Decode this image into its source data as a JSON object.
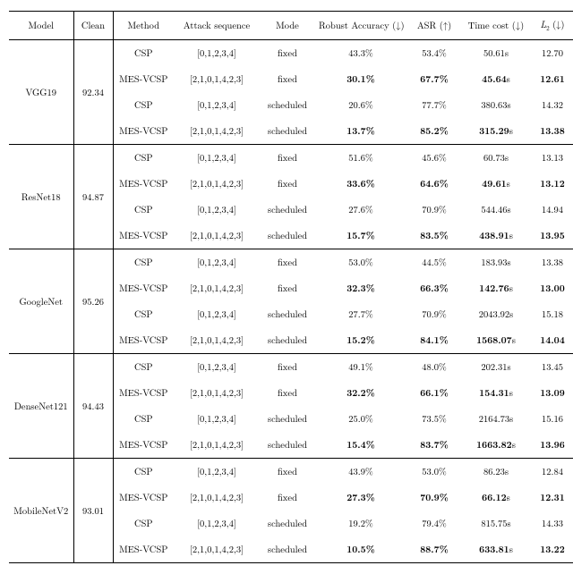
{
  "columns": {
    "model": "Model",
    "clean": "Clean",
    "method": "Method",
    "seq": "Attack sequence",
    "mode": "Mode",
    "robust": "Robust Accuracy (↓)",
    "asr": "ASR (↑)",
    "time": "Time cost (↓)",
    "l2_prefix": "L",
    "l2_sub": "2",
    "l2_suffix": " (↓)"
  },
  "groups": [
    {
      "model": "VGG19",
      "clean": "92.34",
      "rows": [
        {
          "method": "CSP",
          "seq": "[0,1,2,3,4]",
          "mode": "fixed",
          "robust": "43.3%",
          "asr": "53.4%",
          "time": "50.61s",
          "l2": "12.70",
          "bold": false
        },
        {
          "method": "MES-VCSP",
          "seq": "[2,1,0,1,4,2,3]",
          "mode": "fixed",
          "robust": "30.1%",
          "asr": "67.7%",
          "time": "45.64s",
          "l2": "12.61",
          "bold": true
        },
        {
          "method": "CSP",
          "seq": "[0,1,2,3,4]",
          "mode": "scheduled",
          "robust": "20.6%",
          "asr": "77.7%",
          "time": "380.63s",
          "l2": "14.32",
          "bold": false
        },
        {
          "method": "MES-VCSP",
          "seq": "[2,1,0,1,4,2,3]",
          "mode": "scheduled",
          "robust": "13.7%",
          "asr": "85.2%",
          "time": "315.29s",
          "l2": "13.38",
          "bold": true
        }
      ]
    },
    {
      "model": "ResNet18",
      "clean": "94.87",
      "rows": [
        {
          "method": "CSP",
          "seq": "[0,1,2,3,4]",
          "mode": "fixed",
          "robust": "51.6%",
          "asr": "45.6%",
          "time": "60.73s",
          "l2": "13.13",
          "bold": false
        },
        {
          "method": "MES-VCSP",
          "seq": "[2,1,0,1,4,2,3]",
          "mode": "fixed",
          "robust": "33.6%",
          "asr": "64.6%",
          "time": "49.61s",
          "l2": "13.12",
          "bold": true
        },
        {
          "method": "CSP",
          "seq": "[0,1,2,3,4]",
          "mode": "scheduled",
          "robust": "27.6%",
          "asr": "70.9%",
          "time": "544.46s",
          "l2": "14.94",
          "bold": false
        },
        {
          "method": "MES-VCSP",
          "seq": "[2,1,0,1,4,2,3]",
          "mode": "scheduled",
          "robust": "15.7%",
          "asr": "83.5%",
          "time": "438.91s",
          "l2": "13.95",
          "bold": true
        }
      ]
    },
    {
      "model": "GoogleNet",
      "clean": "95.26",
      "rows": [
        {
          "method": "CSP",
          "seq": "[0,1,2,3,4]",
          "mode": "fixed",
          "robust": "53.0%",
          "asr": "44.5%",
          "time": "183.93s",
          "l2": "13.38",
          "bold": false
        },
        {
          "method": "MES-VCSP",
          "seq": "[2,1,0,1,4,2,3]",
          "mode": "fixed",
          "robust": "32.3%",
          "asr": "66.3%",
          "time": "142.76s",
          "l2": "13.00",
          "bold": true
        },
        {
          "method": "CSP",
          "seq": "[0,1,2,3,4]",
          "mode": "scheduled",
          "robust": "27.7%",
          "asr": "70.9%",
          "time": "2043.92s",
          "l2": "15.18",
          "bold": false
        },
        {
          "method": "MES-VCSP",
          "seq": "[2,1,0,1,4,2,3]",
          "mode": "scheduled",
          "robust": "15.2%",
          "asr": "84.1%",
          "time": "1568.07s",
          "l2": "14.04",
          "bold": true
        }
      ]
    },
    {
      "model": "DenseNet121",
      "clean": "94.43",
      "rows": [
        {
          "method": "CSP",
          "seq": "[0,1,2,3,4]",
          "mode": "fixed",
          "robust": "49.1%",
          "asr": "48.0%",
          "time": "202.31s",
          "l2": "13.45",
          "bold": false
        },
        {
          "method": "MES-VCSP",
          "seq": "[2,1,0,1,4,2,3]",
          "mode": "fixed",
          "robust": "32.2%",
          "asr": "66.1%",
          "time": "154.31s",
          "l2": "13.09",
          "bold": true
        },
        {
          "method": "CSP",
          "seq": "[0,1,2,3,4]",
          "mode": "scheduled",
          "robust": "25.0%",
          "asr": "73.5%",
          "time": "2164.73s",
          "l2": "15.16",
          "bold": false
        },
        {
          "method": "MES-VCSP",
          "seq": "[2,1,0,1,4,2,3]",
          "mode": "scheduled",
          "robust": "15.4%",
          "asr": "83.7%",
          "time": "1663.82s",
          "l2": "13.96",
          "bold": true
        }
      ]
    },
    {
      "model": "MobileNetV2",
      "clean": "93.01",
      "rows": [
        {
          "method": "CSP",
          "seq": "[0,1,2,3,4]",
          "mode": "fixed",
          "robust": "43.9%",
          "asr": "53.0%",
          "time": "86.23s",
          "l2": "12.84",
          "bold": false
        },
        {
          "method": "MES-VCSP",
          "seq": "[2,1,0,1,4,2,3]",
          "mode": "fixed",
          "robust": "27.3%",
          "asr": "70.9%",
          "time": "66.12s",
          "l2": "12.31",
          "bold": true
        },
        {
          "method": "CSP",
          "seq": "[0,1,2,3,4]",
          "mode": "scheduled",
          "robust": "19.2%",
          "asr": "79.4%",
          "time": "815.75s",
          "l2": "14.33",
          "bold": false
        },
        {
          "method": "MES-VCSP",
          "seq": "[2,1,0,1,4,2,3]",
          "mode": "scheduled",
          "robust": "10.5%",
          "asr": "88.7%",
          "time": "633.81s",
          "l2": "13.22",
          "bold": true
        }
      ]
    }
  ]
}
